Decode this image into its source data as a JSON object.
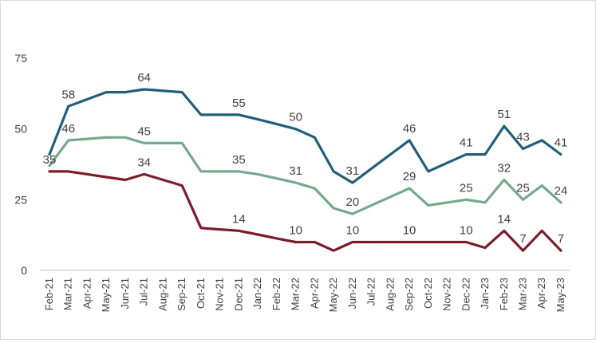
{
  "chart_data": {
    "type": "line",
    "title": "",
    "xlabel": "",
    "ylabel": "",
    "ylim": [
      0,
      75
    ],
    "yticks": [
      0,
      25,
      50,
      75
    ],
    "grid": false,
    "legend": "none",
    "categories": [
      "Feb-21",
      "Mar-21",
      "Apr-21",
      "May-21",
      "Jun-21",
      "Jul-21",
      "Aug-21",
      "Sep-21",
      "Oct-21",
      "Nov-21",
      "Dec-21",
      "Jan-22",
      "Feb-22",
      "Mar-22",
      "Apr-22",
      "May-22",
      "Jun-22",
      "Jul-22",
      "Aug-22",
      "Sep-22",
      "Oct-22",
      "Nov-22",
      "Dec-22",
      "Jan-23",
      "Feb-23",
      "Mar-23",
      "Apr-23",
      "May-23"
    ],
    "series": [
      {
        "color": "#1f5f7a",
        "values": [
          41,
          58,
          60.5,
          63,
          63,
          64,
          63.5,
          63,
          55,
          55,
          55,
          53.4,
          51.7,
          50,
          47,
          35,
          31,
          36,
          41,
          46,
          35,
          38,
          41,
          41,
          51,
          43,
          46,
          41
        ],
        "labels": [
          null,
          "58",
          null,
          null,
          null,
          "64",
          null,
          null,
          null,
          null,
          "55",
          null,
          null,
          "50",
          null,
          null,
          "31",
          null,
          null,
          "46",
          null,
          null,
          "41",
          null,
          "51",
          "43",
          null,
          "41"
        ]
      },
      {
        "color": "#74a98b",
        "values": [
          37,
          46,
          46.5,
          47,
          47,
          45,
          45,
          45,
          35,
          35,
          35,
          34,
          32.5,
          31,
          29,
          22,
          20,
          23,
          26,
          29,
          23,
          24,
          25,
          24,
          32,
          25,
          30,
          24
        ],
        "labels": [
          null,
          "46",
          null,
          null,
          null,
          "45",
          null,
          null,
          null,
          null,
          "35",
          null,
          null,
          "31",
          null,
          null,
          "20",
          null,
          null,
          "29",
          null,
          null,
          "25",
          null,
          "32",
          "25",
          null,
          "24"
        ]
      },
      {
        "color": "#7b1c2a",
        "values": [
          35,
          35,
          34,
          33,
          32,
          34,
          32,
          30,
          15,
          14.5,
          14,
          12.7,
          11.3,
          10,
          10,
          7,
          10,
          10,
          10,
          10,
          10,
          10,
          10,
          8,
          14,
          7,
          14,
          7
        ],
        "labels": [
          "35",
          null,
          null,
          null,
          null,
          "34",
          null,
          null,
          null,
          null,
          "14",
          null,
          null,
          "10",
          null,
          null,
          "10",
          null,
          null,
          "10",
          null,
          null,
          "10",
          null,
          "14",
          "7",
          null,
          "7"
        ]
      }
    ]
  }
}
